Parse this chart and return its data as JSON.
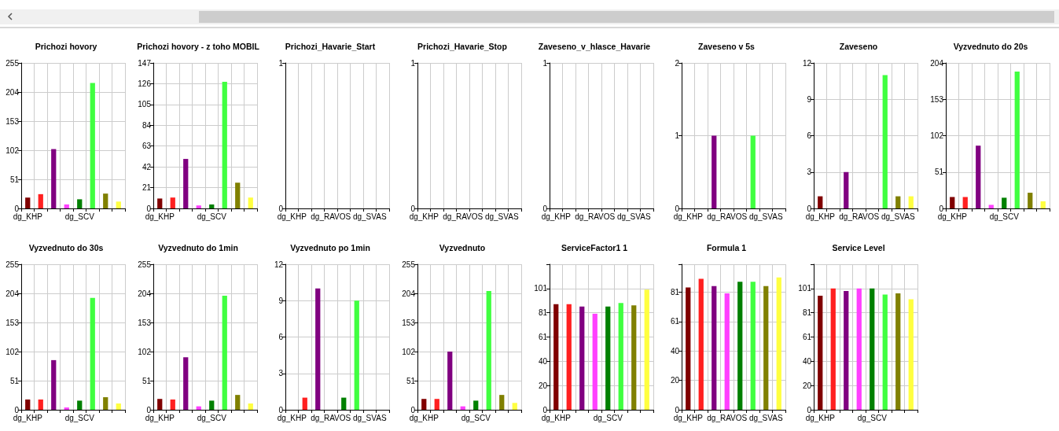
{
  "chart_data": [
    {
      "type": "bar",
      "title": "Prichozi hovory",
      "categories": [
        "dg_KHP",
        null,
        null,
        null,
        "dg_SCV",
        null,
        null,
        null
      ],
      "values": [
        19,
        25,
        104,
        7,
        16,
        220,
        26,
        12
      ],
      "colors": [
        "#800000",
        "#ff2020",
        "#800080",
        "#ff40ff",
        "#008000",
        "#40ff40",
        "#808000",
        "#ffff40"
      ],
      "ylim": [
        0,
        255
      ],
      "yticks": [
        0,
        51,
        102,
        153,
        204,
        255
      ],
      "grid": true
    },
    {
      "type": "bar",
      "title": "Prichozi hovory - z toho MOBIL",
      "categories": [
        "dg_KHP",
        null,
        null,
        null,
        "dg_SCV",
        null,
        null,
        null
      ],
      "values": [
        10,
        11,
        50,
        3,
        4,
        128,
        26,
        11
      ],
      "colors": [
        "#800000",
        "#ff2020",
        "#800080",
        "#ff40ff",
        "#008000",
        "#40ff40",
        "#808000",
        "#ffff40"
      ],
      "ylim": [
        0,
        147
      ],
      "yticks": [
        0,
        21,
        42,
        63,
        84,
        105,
        126,
        147
      ],
      "grid": true
    },
    {
      "type": "bar",
      "title": "Prichozi_Havarie_Start",
      "categories": [
        "dg_KHP",
        null,
        null,
        "dg_RAVOS",
        null,
        null,
        "dg_SVAS",
        null
      ],
      "values": [
        0,
        0,
        0,
        0,
        0,
        0,
        0,
        0
      ],
      "colors": [
        "#800000",
        "#ff2020",
        "#800080",
        "#ff40ff",
        "#008000",
        "#40ff40",
        "#808000",
        "#ffff40"
      ],
      "ylim": [
        0,
        1
      ],
      "yticks": [
        0,
        1
      ],
      "grid": true
    },
    {
      "type": "bar",
      "title": "Prichozi_Havarie_Stop",
      "categories": [
        "dg_KHP",
        null,
        null,
        "dg_RAVOS",
        null,
        null,
        "dg_SVAS",
        null
      ],
      "values": [
        0,
        0,
        0,
        0,
        0,
        0,
        0,
        0
      ],
      "colors": [
        "#800000",
        "#ff2020",
        "#800080",
        "#ff40ff",
        "#008000",
        "#40ff40",
        "#808000",
        "#ffff40"
      ],
      "ylim": [
        0,
        1
      ],
      "yticks": [
        0,
        1
      ],
      "grid": true
    },
    {
      "type": "bar",
      "title": "Zaveseno_v_hlasce_Havarie",
      "categories": [
        "dg_KHP",
        null,
        null,
        "dg_RAVOS",
        null,
        null,
        "dg_SVAS",
        null
      ],
      "values": [
        0,
        0,
        0,
        0,
        0,
        0,
        0,
        0
      ],
      "colors": [
        "#800000",
        "#ff2020",
        "#800080",
        "#ff40ff",
        "#008000",
        "#40ff40",
        "#808000",
        "#ffff40"
      ],
      "ylim": [
        0,
        1
      ],
      "yticks": [
        0,
        1
      ],
      "grid": true
    },
    {
      "type": "bar",
      "title": "Zaveseno v 5s",
      "categories": [
        "dg_KHP",
        null,
        null,
        "dg_RAVOS",
        null,
        null,
        "dg_SVAS",
        null
      ],
      "values": [
        0,
        0,
        1,
        0,
        0,
        1,
        0,
        0
      ],
      "colors": [
        "#800000",
        "#ff2020",
        "#800080",
        "#ff40ff",
        "#008000",
        "#40ff40",
        "#808000",
        "#ffff40"
      ],
      "ylim": [
        0,
        2
      ],
      "yticks": [
        0,
        1,
        2
      ],
      "grid": true
    },
    {
      "type": "bar",
      "title": "Zaveseno",
      "categories": [
        "dg_KHP",
        null,
        null,
        "dg_RAVOS",
        null,
        null,
        "dg_SVAS",
        null
      ],
      "values": [
        1,
        0,
        3,
        0,
        0,
        11,
        1,
        1
      ],
      "colors": [
        "#800000",
        "#ff2020",
        "#800080",
        "#ff40ff",
        "#008000",
        "#40ff40",
        "#808000",
        "#ffff40"
      ],
      "ylim": [
        0,
        12
      ],
      "yticks": [
        0,
        3,
        6,
        9,
        12
      ],
      "grid": true
    },
    {
      "type": "bar",
      "title": "Vyzvednuto do 20s",
      "categories": [
        "dg_KHP",
        null,
        null,
        null,
        "dg_SCV",
        null,
        null,
        null
      ],
      "values": [
        16,
        16,
        88,
        5,
        15,
        192,
        22,
        10
      ],
      "colors": [
        "#800000",
        "#ff2020",
        "#800080",
        "#ff40ff",
        "#008000",
        "#40ff40",
        "#808000",
        "#ffff40"
      ],
      "ylim": [
        0,
        204
      ],
      "yticks": [
        0,
        51,
        102,
        153,
        204
      ],
      "grid": true
    },
    {
      "type": "bar",
      "title": "Vyzvednuto do 30s",
      "categories": [
        "dg_KHP",
        null,
        null,
        null,
        "dg_SCV",
        null,
        null,
        null
      ],
      "values": [
        18,
        18,
        87,
        4,
        16,
        196,
        22,
        11
      ],
      "colors": [
        "#800000",
        "#ff2020",
        "#800080",
        "#ff40ff",
        "#008000",
        "#40ff40",
        "#808000",
        "#ffff40"
      ],
      "ylim": [
        0,
        255
      ],
      "yticks": [
        0,
        51,
        102,
        153,
        204,
        255
      ],
      "grid": true
    },
    {
      "type": "bar",
      "title": "Vyzvednuto do 1min",
      "categories": [
        "dg_KHP",
        null,
        null,
        null,
        "dg_SCV",
        null,
        null,
        null
      ],
      "values": [
        19,
        18,
        92,
        6,
        16,
        200,
        26,
        11
      ],
      "colors": [
        "#800000",
        "#ff2020",
        "#800080",
        "#ff40ff",
        "#008000",
        "#40ff40",
        "#808000",
        "#ffff40"
      ],
      "ylim": [
        0,
        255
      ],
      "yticks": [
        0,
        51,
        102,
        153,
        204,
        255
      ],
      "grid": true
    },
    {
      "type": "bar",
      "title": "Vyzvednuto po 1min",
      "categories": [
        "dg_KHP",
        null,
        null,
        "dg_RAVOS",
        null,
        null,
        "dg_SVAS",
        null
      ],
      "values": [
        0,
        1,
        10,
        0,
        1,
        9,
        0,
        0
      ],
      "colors": [
        "#800000",
        "#ff2020",
        "#800080",
        "#ff40ff",
        "#008000",
        "#40ff40",
        "#808000",
        "#ffff40"
      ],
      "ylim": [
        0,
        12
      ],
      "yticks": [
        0,
        3,
        6,
        9,
        12
      ],
      "grid": true
    },
    {
      "type": "bar",
      "title": "Vyzvednuto",
      "categories": [
        "dg_KHP",
        null,
        null,
        null,
        "dg_SCV",
        null,
        null,
        null
      ],
      "values": [
        19,
        19,
        102,
        6,
        16,
        208,
        26,
        12
      ],
      "colors": [
        "#800000",
        "#ff2020",
        "#800080",
        "#ff40ff",
        "#008000",
        "#40ff40",
        "#808000",
        "#ffff40"
      ],
      "ylim": [
        0,
        255
      ],
      "yticks": [
        0,
        51,
        102,
        153,
        204,
        255
      ],
      "grid": true
    },
    {
      "type": "bar",
      "title": "ServiceFactor1 1",
      "categories": [
        "dg_KHP",
        null,
        null,
        null,
        "dg_SCV",
        null,
        null,
        null
      ],
      "values": [
        88,
        88,
        86,
        80,
        86,
        89,
        87,
        100
      ],
      "colors": [
        "#800000",
        "#ff2020",
        "#800080",
        "#ff40ff",
        "#008000",
        "#40ff40",
        "#808000",
        "#ffff40"
      ],
      "ylim": [
        0,
        121.2
      ],
      "yticks": [
        0,
        {
          "value": 20.2,
          "label": "20"
        },
        {
          "value": 40.4,
          "label": "40"
        },
        {
          "value": 60.6,
          "label": "61"
        },
        {
          "value": 80.8,
          "label": "81"
        },
        101
      ],
      "grid": true
    },
    {
      "type": "bar",
      "title": "Formula 1",
      "categories": [
        "dg_KHP",
        null,
        null,
        "dg_RAVOS",
        null,
        null,
        "dg_SVAS",
        null
      ],
      "values": [
        84,
        90,
        85,
        80,
        88,
        88,
        85,
        91
      ],
      "colors": [
        "#800000",
        "#ff2020",
        "#800080",
        "#ff40ff",
        "#008000",
        "#40ff40",
        "#808000",
        "#ffff40"
      ],
      "ylim": [
        0,
        100
      ],
      "yticks": [
        0,
        {
          "value": 20.2,
          "label": "20"
        },
        {
          "value": 40.4,
          "label": "40"
        },
        {
          "value": 60.6,
          "label": "61"
        },
        {
          "value": 80.8,
          "label": "81"
        }
      ],
      "grid": true
    },
    {
      "type": "bar",
      "title": "Service Level",
      "categories": [
        "dg_KHP",
        null,
        null,
        null,
        "dg_SCV",
        null,
        null,
        null
      ],
      "values": [
        95,
        101,
        99,
        101,
        101,
        96,
        97,
        92
      ],
      "colors": [
        "#800000",
        "#ff2020",
        "#800080",
        "#ff40ff",
        "#008000",
        "#40ff40",
        "#808000",
        "#ffff40"
      ],
      "ylim": [
        0,
        121.2
      ],
      "yticks": [
        0,
        {
          "value": 20.2,
          "label": "20"
        },
        {
          "value": 40.4,
          "label": "40"
        },
        {
          "value": 60.6,
          "label": "61"
        },
        {
          "value": 80.8,
          "label": "81"
        },
        101
      ],
      "grid": true
    }
  ]
}
